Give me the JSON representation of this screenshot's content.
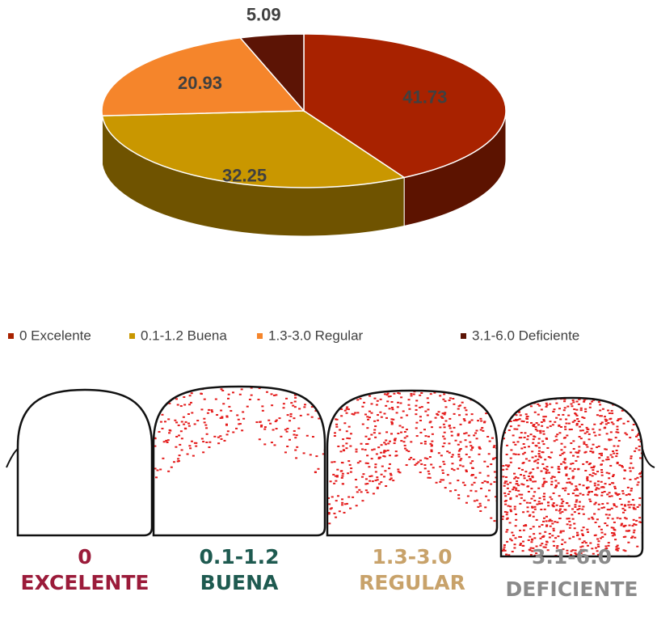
{
  "chart_data": {
    "type": "pie",
    "categories": [
      "0 Excelente",
      "0.1-1.2 Buena",
      "1.3-3.0 Regular",
      "3.1-6.0 Deficiente"
    ],
    "values": [
      41.73,
      32.25,
      20.93,
      5.09
    ],
    "colors": [
      "#a82200",
      "#c99700",
      "#f5852b",
      "#5c1405"
    ],
    "legend": "bottom"
  },
  "illustration": {
    "labels": [
      {
        "range": "0",
        "grade": "EXCELENTE"
      },
      {
        "range": "0.1-1.2",
        "grade": "BUENA"
      },
      {
        "range": "1.3-3.0",
        "grade": "REGULAR"
      },
      {
        "range": "3.1-6.0",
        "grade": "DEFICIENTE"
      }
    ]
  }
}
